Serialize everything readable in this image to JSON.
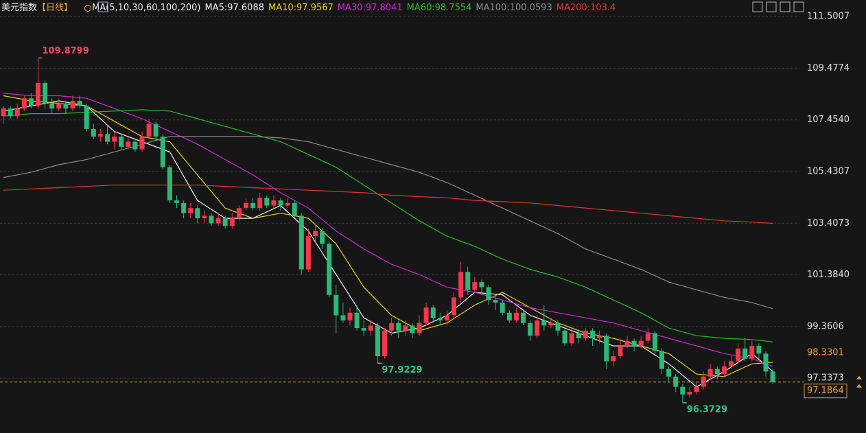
{
  "chart_data": {
    "type": "candlestick",
    "title": "美元指数",
    "period": "【日线】",
    "ma_params": "MA(5,10,30,60,100,200)",
    "up_color": "#f0394b",
    "down_color": "#2eb878",
    "ohlc": [
      [
        107.6,
        108.0,
        107.3,
        107.9
      ],
      [
        107.9,
        108.0,
        107.5,
        107.6
      ],
      [
        107.6,
        108.1,
        107.5,
        107.9
      ],
      [
        107.9,
        108.4,
        107.8,
        108.3
      ],
      [
        108.3,
        108.5,
        107.9,
        108.0
      ],
      [
        108.0,
        109.8799,
        107.9,
        108.9
      ],
      [
        108.9,
        109.0,
        107.9,
        108.1
      ],
      [
        108.1,
        108.3,
        107.7,
        107.9
      ],
      [
        107.9,
        108.3,
        107.8,
        108.1
      ],
      [
        108.1,
        108.2,
        107.7,
        107.9
      ],
      [
        107.9,
        108.4,
        107.8,
        108.2
      ],
      [
        108.2,
        108.4,
        107.9,
        108.0
      ],
      [
        108.0,
        108.1,
        107.0,
        107.1
      ],
      [
        107.1,
        107.3,
        106.7,
        106.8
      ],
      [
        106.8,
        107.1,
        106.6,
        106.9
      ],
      [
        106.9,
        107.2,
        106.5,
        106.6
      ],
      [
        106.6,
        107.0,
        106.3,
        106.8
      ],
      [
        106.8,
        106.9,
        106.3,
        106.4
      ],
      [
        106.4,
        106.8,
        106.3,
        106.6
      ],
      [
        106.6,
        106.7,
        106.2,
        106.3
      ],
      [
        106.3,
        107.0,
        106.2,
        106.8
      ],
      [
        106.8,
        107.5,
        106.7,
        107.3
      ],
      [
        107.3,
        107.4,
        106.6,
        106.8
      ],
      [
        106.8,
        106.9,
        105.5,
        105.6
      ],
      [
        105.6,
        105.7,
        104.2,
        104.3
      ],
      [
        104.3,
        104.5,
        104.0,
        104.2
      ],
      [
        104.2,
        104.3,
        103.6,
        103.8
      ],
      [
        103.8,
        104.2,
        103.6,
        104.0
      ],
      [
        104.0,
        104.1,
        103.4,
        103.6
      ],
      [
        103.6,
        103.9,
        103.4,
        103.7
      ],
      [
        103.7,
        103.8,
        103.3,
        103.4
      ],
      [
        103.4,
        103.8,
        103.3,
        103.6
      ],
      [
        103.6,
        103.7,
        103.2,
        103.3
      ],
      [
        103.3,
        103.8,
        103.2,
        103.6
      ],
      [
        103.6,
        104.1,
        103.5,
        104.0
      ],
      [
        104.0,
        104.4,
        103.9,
        104.2
      ],
      [
        104.2,
        104.4,
        103.9,
        104.0
      ],
      [
        104.0,
        104.6,
        103.9,
        104.4
      ],
      [
        104.4,
        104.5,
        104.0,
        104.1
      ],
      [
        104.1,
        104.5,
        104.0,
        104.3
      ],
      [
        104.3,
        104.4,
        103.9,
        104.1
      ],
      [
        104.1,
        104.4,
        104.0,
        104.2
      ],
      [
        104.2,
        104.3,
        103.6,
        103.7
      ],
      [
        103.7,
        103.8,
        101.4,
        101.6
      ],
      [
        101.6,
        103.2,
        101.5,
        102.9
      ],
      [
        102.9,
        103.4,
        102.7,
        103.1
      ],
      [
        103.1,
        103.2,
        102.4,
        102.6
      ],
      [
        102.6,
        102.7,
        100.5,
        100.6
      ],
      [
        100.6,
        101.0,
        99.1,
        99.8
      ],
      [
        99.8,
        100.3,
        99.5,
        99.6
      ],
      [
        99.6,
        100.1,
        99.4,
        99.9
      ],
      [
        99.9,
        100.2,
        99.2,
        99.3
      ],
      [
        99.3,
        99.6,
        99.0,
        99.2
      ],
      [
        99.2,
        99.6,
        99.0,
        99.4
      ],
      [
        99.4,
        99.5,
        97.9229,
        98.2
      ],
      [
        98.2,
        99.3,
        98.1,
        99.2
      ],
      [
        99.2,
        99.7,
        99.0,
        99.5
      ],
      [
        99.5,
        99.6,
        98.9,
        99.2
      ],
      [
        99.2,
        99.6,
        99.0,
        99.4
      ],
      [
        99.4,
        99.5,
        98.9,
        99.1
      ],
      [
        99.1,
        99.8,
        99.0,
        99.5
      ],
      [
        99.5,
        100.3,
        99.4,
        100.1
      ],
      [
        100.1,
        100.2,
        99.5,
        99.7
      ],
      [
        99.7,
        99.9,
        99.4,
        99.6
      ],
      [
        99.6,
        100.0,
        99.4,
        99.8
      ],
      [
        99.8,
        100.7,
        99.7,
        100.5
      ],
      [
        100.5,
        101.9,
        100.3,
        101.5
      ],
      [
        101.5,
        101.7,
        100.6,
        100.8
      ],
      [
        100.8,
        101.3,
        100.7,
        101.1
      ],
      [
        101.1,
        101.2,
        100.6,
        100.9
      ],
      [
        100.9,
        101.0,
        100.2,
        100.4
      ],
      [
        100.4,
        100.6,
        100.0,
        100.3
      ],
      [
        100.3,
        100.4,
        99.8,
        99.9
      ],
      [
        99.9,
        100.0,
        99.5,
        99.6
      ],
      [
        99.6,
        100.1,
        99.5,
        99.9
      ],
      [
        99.9,
        100.0,
        99.4,
        99.5
      ],
      [
        99.5,
        99.6,
        98.8,
        99.0
      ],
      [
        99.0,
        99.8,
        98.9,
        99.6
      ],
      [
        99.6,
        100.2,
        99.2,
        99.4
      ],
      [
        99.4,
        99.7,
        99.3,
        99.5
      ],
      [
        99.5,
        99.6,
        99.0,
        99.2
      ],
      [
        99.2,
        99.3,
        98.6,
        98.7
      ],
      [
        98.7,
        99.3,
        98.6,
        99.1
      ],
      [
        99.1,
        99.2,
        98.7,
        98.9
      ],
      [
        98.9,
        99.3,
        98.8,
        99.2
      ],
      [
        99.2,
        99.3,
        98.6,
        98.9
      ],
      [
        98.9,
        99.2,
        98.7,
        99.0
      ],
      [
        99.0,
        99.1,
        97.7,
        98.0
      ],
      [
        98.0,
        98.4,
        97.8,
        98.2
      ],
      [
        98.2,
        98.9,
        98.1,
        98.6
      ],
      [
        98.6,
        99.0,
        98.5,
        98.8
      ],
      [
        98.8,
        98.9,
        98.4,
        98.6
      ],
      [
        98.6,
        99.0,
        98.5,
        98.8
      ],
      [
        98.8,
        99.3,
        98.7,
        99.1
      ],
      [
        99.1,
        99.2,
        98.2,
        98.4
      ],
      [
        98.4,
        98.5,
        97.5,
        97.7
      ],
      [
        97.7,
        97.8,
        97.2,
        97.4
      ],
      [
        97.4,
        97.5,
        96.8,
        97.0
      ],
      [
        97.0,
        97.1,
        96.3729,
        96.7
      ],
      [
        96.7,
        97.0,
        96.6,
        96.8
      ],
      [
        96.8,
        97.2,
        96.7,
        97.0
      ],
      [
        97.0,
        97.6,
        96.9,
        97.4
      ],
      [
        97.4,
        97.9,
        97.3,
        97.7
      ],
      [
        97.7,
        97.8,
        97.3,
        97.5
      ],
      [
        97.5,
        98.0,
        97.4,
        97.8
      ],
      [
        97.8,
        98.2,
        97.7,
        98.0
      ],
      [
        98.0,
        98.7,
        97.9,
        98.5
      ],
      [
        98.5,
        98.9,
        98.0,
        98.1
      ],
      [
        98.1,
        98.8,
        98.0,
        98.6
      ],
      [
        98.6,
        98.7,
        98.1,
        98.3
      ],
      [
        98.3,
        98.4,
        97.4,
        97.6
      ],
      [
        97.6,
        97.7,
        97.1,
        97.1864
      ]
    ],
    "series": [
      {
        "name": "MA5:97.6088",
        "color": "#f2f2f2",
        "x": [
          0,
          4,
          8,
          12,
          16,
          20,
          24,
          28,
          32,
          36,
          40,
          44,
          48,
          52,
          56,
          60,
          64,
          68,
          72,
          76,
          80,
          84,
          88,
          92,
          96,
          100,
          104,
          108,
          111
        ],
        "values": [
          107.8,
          108.0,
          108.2,
          108.0,
          107.0,
          106.6,
          106.2,
          104.3,
          103.6,
          103.6,
          104.1,
          103.1,
          101.4,
          99.7,
          99.1,
          99.3,
          99.8,
          100.7,
          100.6,
          99.8,
          99.4,
          99.0,
          98.6,
          98.6,
          97.9,
          97.0,
          97.6,
          98.3,
          97.61
        ]
      },
      {
        "name": "MA10:97.9567",
        "color": "#e6d21e",
        "x": [
          0,
          4,
          8,
          12,
          16,
          20,
          24,
          28,
          32,
          36,
          40,
          44,
          48,
          52,
          56,
          60,
          64,
          68,
          72,
          76,
          80,
          84,
          88,
          92,
          96,
          100,
          104,
          108,
          111
        ],
        "values": [
          108.4,
          108.2,
          108.1,
          108.0,
          107.4,
          106.8,
          106.6,
          105.3,
          104.0,
          103.6,
          103.8,
          103.6,
          102.6,
          100.9,
          99.8,
          99.2,
          99.5,
          100.2,
          100.7,
          100.1,
          99.5,
          99.1,
          98.9,
          98.6,
          98.3,
          97.5,
          97.4,
          97.9,
          97.96
        ]
      },
      {
        "name": "MA30:97.8041",
        "color": "#d026d6",
        "x": [
          0,
          4,
          8,
          12,
          16,
          20,
          24,
          28,
          32,
          36,
          40,
          44,
          48,
          52,
          56,
          60,
          64,
          68,
          72,
          76,
          80,
          84,
          88,
          92,
          96,
          100,
          104,
          108,
          111
        ],
        "values": [
          108.5,
          108.4,
          108.4,
          108.3,
          107.9,
          107.5,
          107.0,
          106.5,
          105.9,
          105.3,
          104.6,
          104.0,
          103.1,
          102.4,
          101.8,
          101.4,
          100.9,
          100.7,
          100.4,
          100.1,
          99.9,
          99.7,
          99.5,
          99.2,
          98.9,
          98.6,
          98.3,
          98.1,
          97.8
        ]
      },
      {
        "name": "MA60:98.7554",
        "color": "#22c02a",
        "x": [
          0,
          4,
          8,
          12,
          16,
          20,
          24,
          28,
          32,
          36,
          40,
          44,
          48,
          52,
          56,
          60,
          64,
          68,
          72,
          76,
          80,
          84,
          88,
          92,
          96,
          100,
          104,
          108,
          111
        ],
        "values": [
          107.6,
          107.7,
          107.7,
          107.75,
          107.8,
          107.85,
          107.8,
          107.5,
          107.2,
          106.9,
          106.6,
          106.1,
          105.6,
          104.9,
          104.2,
          103.5,
          102.9,
          102.5,
          102.0,
          101.6,
          101.3,
          100.9,
          100.4,
          99.9,
          99.3,
          99.0,
          98.9,
          98.85,
          98.76
        ]
      },
      {
        "name": "MA100:100.0593",
        "color": "#8a8a8a",
        "x": [
          0,
          4,
          8,
          12,
          16,
          20,
          24,
          28,
          32,
          36,
          40,
          44,
          48,
          52,
          56,
          60,
          64,
          68,
          72,
          76,
          80,
          84,
          88,
          92,
          96,
          100,
          104,
          108,
          111
        ],
        "values": [
          105.2,
          105.4,
          105.7,
          105.9,
          106.2,
          106.5,
          106.8,
          106.8,
          106.8,
          106.8,
          106.75,
          106.6,
          106.3,
          106.0,
          105.7,
          105.4,
          105.0,
          104.5,
          104.0,
          103.5,
          103.0,
          102.4,
          102.0,
          101.6,
          101.1,
          100.8,
          100.5,
          100.3,
          100.06
        ]
      },
      {
        "name": "MA200:103.4",
        "color": "#e8332e",
        "x": [
          0,
          4,
          8,
          12,
          16,
          20,
          24,
          28,
          32,
          36,
          40,
          44,
          48,
          52,
          56,
          60,
          64,
          68,
          72,
          76,
          80,
          84,
          88,
          92,
          96,
          100,
          104,
          108,
          111
        ],
        "values": [
          104.7,
          104.75,
          104.8,
          104.85,
          104.9,
          104.9,
          104.9,
          104.9,
          104.85,
          104.8,
          104.75,
          104.7,
          104.65,
          104.6,
          104.5,
          104.45,
          104.4,
          104.3,
          104.25,
          104.2,
          104.1,
          104.0,
          103.9,
          103.8,
          103.7,
          103.6,
          103.5,
          103.45,
          103.4
        ]
      }
    ],
    "annotations": [
      109.8799,
      97.9229,
      96.3729
    ],
    "marker_price": 98.3301,
    "last_price": 97.1864,
    "ylim": [
      95.19,
      112.15
    ],
    "yticks": [
      111.5007,
      109.4774,
      {
        "value": 107.454,
        "label": "107.4540"
      },
      105.4307,
      103.4073,
      {
        "value": 101.384,
        "label": "101.3840"
      },
      99.3606,
      97.3373
    ],
    "grid": true
  }
}
